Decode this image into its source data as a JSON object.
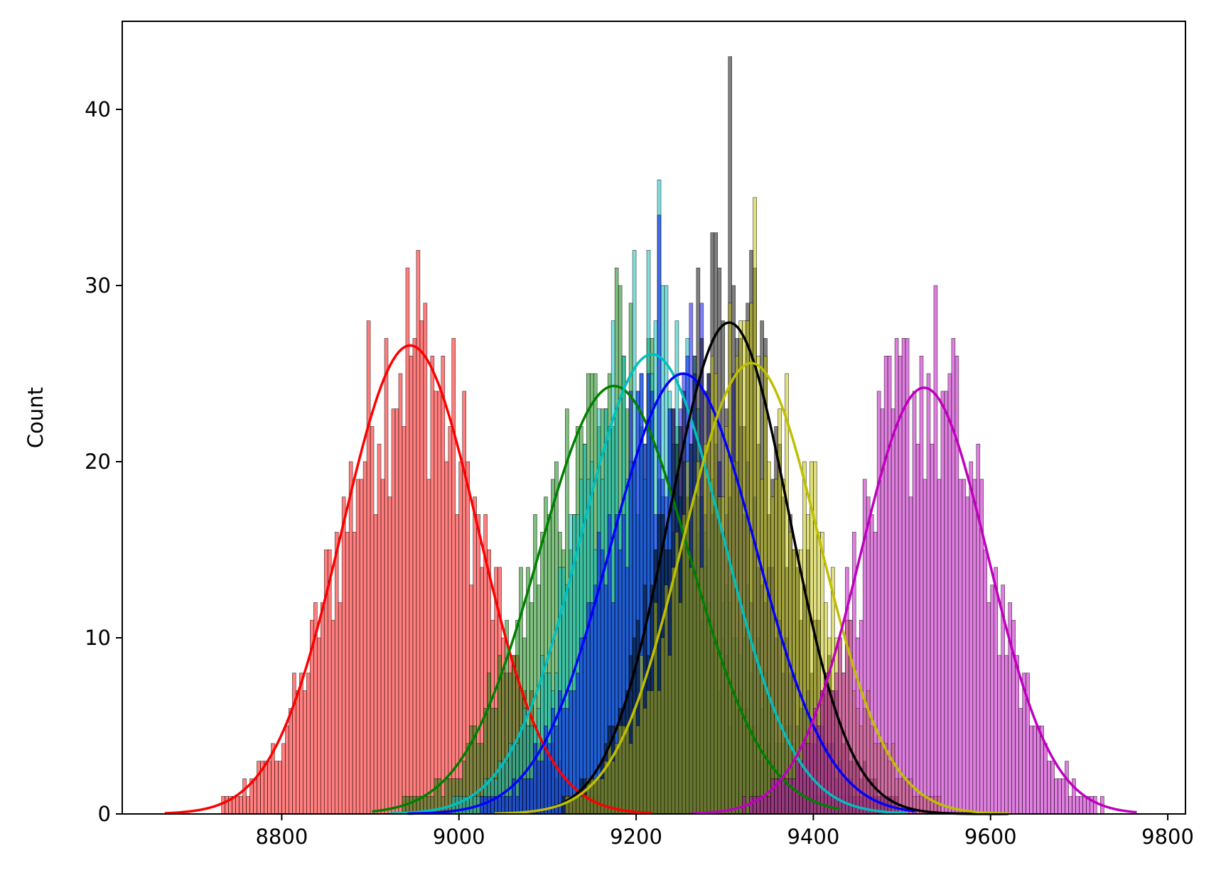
{
  "chart_data": {
    "type": "histogram",
    "xlabel": "",
    "ylabel": "Count",
    "xlim": [
      8620,
      9820
    ],
    "ylim": [
      0,
      45
    ],
    "xticks": [
      8800,
      9000,
      9200,
      9400,
      9600,
      9800
    ],
    "yticks": [
      0,
      10,
      20,
      30,
      40
    ],
    "grid": false,
    "legend": "none",
    "bin_width": 4,
    "series": [
      {
        "color": "#ff0000",
        "mean": 8945,
        "std": 77,
        "range": [
          8668,
          9218
        ],
        "kde_peak": 26.6,
        "hist_peak": 32
      },
      {
        "color": "#008000",
        "mean": 9175,
        "std": 85,
        "range": [
          8902,
          9430
        ],
        "kde_peak": 24.3,
        "hist_peak": 31
      },
      {
        "color": "#00bfbf",
        "mean": 9218,
        "std": 80,
        "range": [
          8922,
          9505
        ],
        "kde_peak": 26.1,
        "hist_peak": 36
      },
      {
        "color": "#0000ff",
        "mean": 9253,
        "std": 82,
        "range": [
          8942,
          9515
        ],
        "kde_peak": 25.0,
        "hist_peak": 34
      },
      {
        "color": "#000000",
        "mean": 9305,
        "std": 68,
        "range": [
          9058,
          9620
        ],
        "kde_peak": 27.9,
        "hist_peak": 43
      },
      {
        "color": "#bfbf00",
        "mean": 9330,
        "std": 77,
        "range": [
          9040,
          9622
        ],
        "kde_peak": 25.6,
        "hist_peak": 35
      },
      {
        "color": "#bf00bf",
        "mean": 9525,
        "std": 72,
        "range": [
          9262,
          9765
        ],
        "kde_peak": 24.2,
        "hist_peak": 30
      }
    ]
  }
}
